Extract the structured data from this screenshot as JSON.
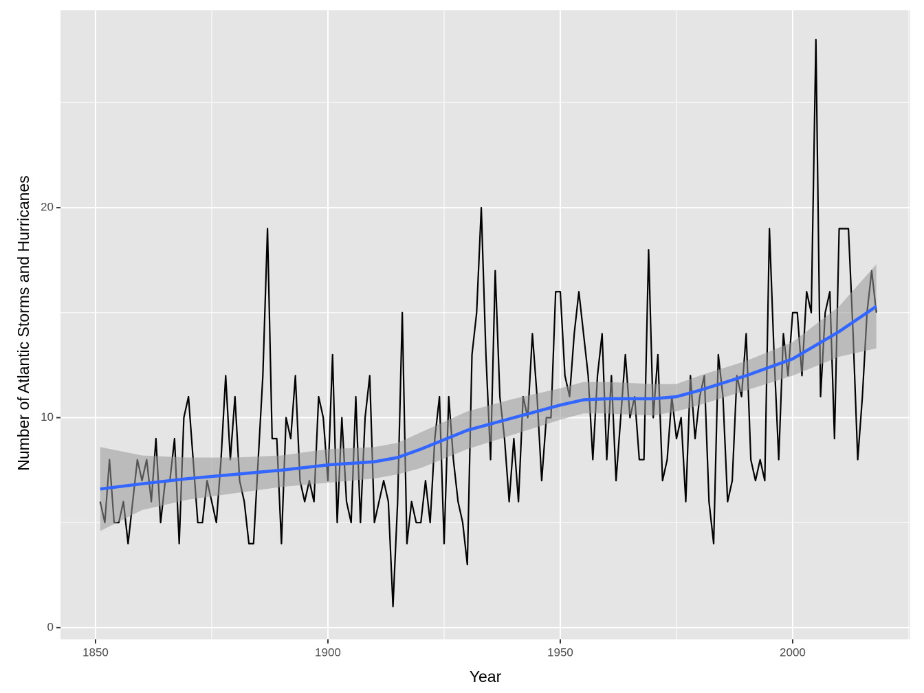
{
  "chart_data": {
    "type": "line",
    "x_label": "Year",
    "y_label": "Number of Atlantic Storms and Hurricanes",
    "xlim": [
      1842.46,
      2025.3
    ],
    "ylim": [
      -0.56,
      29.4
    ],
    "xticks": [
      1850,
      1900,
      1950,
      2000
    ],
    "yticks": [
      0,
      10,
      20
    ],
    "grid": true,
    "series": [
      {
        "color": "#000000",
        "x": [
          1851,
          1852,
          1853,
          1854,
          1855,
          1856,
          1857,
          1858,
          1859,
          1860,
          1861,
          1862,
          1863,
          1864,
          1865,
          1866,
          1867,
          1868,
          1869,
          1870,
          1871,
          1872,
          1873,
          1874,
          1875,
          1876,
          1877,
          1878,
          1879,
          1880,
          1881,
          1882,
          1883,
          1884,
          1885,
          1886,
          1887,
          1888,
          1889,
          1890,
          1891,
          1892,
          1893,
          1894,
          1895,
          1896,
          1897,
          1898,
          1899,
          1900,
          1901,
          1902,
          1903,
          1904,
          1905,
          1906,
          1907,
          1908,
          1909,
          1910,
          1911,
          1912,
          1913,
          1914,
          1915,
          1916,
          1917,
          1918,
          1919,
          1920,
          1921,
          1922,
          1923,
          1924,
          1925,
          1926,
          1927,
          1928,
          1929,
          1930,
          1931,
          1932,
          1933,
          1934,
          1935,
          1936,
          1937,
          1938,
          1939,
          1940,
          1941,
          1942,
          1943,
          1944,
          1945,
          1946,
          1947,
          1948,
          1949,
          1950,
          1951,
          1952,
          1953,
          1954,
          1955,
          1956,
          1957,
          1958,
          1959,
          1960,
          1961,
          1962,
          1963,
          1964,
          1965,
          1966,
          1967,
          1968,
          1969,
          1970,
          1971,
          1972,
          1973,
          1974,
          1975,
          1976,
          1977,
          1978,
          1979,
          1980,
          1981,
          1982,
          1983,
          1984,
          1985,
          1986,
          1987,
          1988,
          1989,
          1990,
          1991,
          1992,
          1993,
          1994,
          1995,
          1996,
          1997,
          1998,
          1999,
          2000,
          2001,
          2002,
          2003,
          2004,
          2005,
          2006,
          2007,
          2008,
          2009,
          2010,
          2011,
          2012,
          2013,
          2014,
          2015,
          2016,
          2017,
          2018
        ],
        "values": [
          6,
          5,
          8,
          5,
          5,
          6,
          4,
          6,
          8,
          7,
          8,
          6,
          9,
          5,
          7,
          7,
          9,
          4,
          10,
          11,
          8,
          5,
          5,
          7,
          6,
          5,
          8,
          12,
          8,
          11,
          7,
          6,
          4,
          4,
          8,
          12,
          19,
          9,
          9,
          4,
          10,
          9,
          12,
          7,
          6,
          7,
          6,
          11,
          10,
          7,
          13,
          5,
          10,
          6,
          5,
          11,
          5,
          10,
          12,
          5,
          6,
          7,
          6,
          1,
          6,
          15,
          4,
          6,
          5,
          5,
          7,
          5,
          9,
          11,
          4,
          11,
          8,
          6,
          5,
          3,
          13,
          15,
          20,
          13,
          8,
          17,
          11,
          9,
          6,
          9,
          6,
          11,
          10,
          14,
          11,
          7,
          10,
          10,
          16,
          16,
          12,
          11,
          14,
          16,
          14,
          12,
          8,
          12,
          14,
          8,
          12,
          7,
          10,
          13,
          10,
          11,
          8,
          8,
          18,
          10,
          13,
          7,
          8,
          11,
          9,
          10,
          6,
          12,
          9,
          11,
          12,
          6,
          4,
          13,
          11,
          6,
          7,
          12,
          11,
          14,
          8,
          7,
          8,
          7,
          19,
          13,
          8,
          14,
          12,
          15,
          15,
          12,
          16,
          15,
          28,
          11,
          15,
          16,
          9,
          19,
          19,
          19,
          14,
          8,
          11,
          15,
          17,
          15
        ]
      }
    ],
    "smooth": {
      "color": "#3366ff",
      "band_color": "#999999",
      "x": [
        1851,
        1860,
        1870,
        1880,
        1890,
        1900,
        1910,
        1915,
        1920,
        1930,
        1940,
        1950,
        1955,
        1960,
        1970,
        1975,
        1980,
        1990,
        2000,
        2010,
        2018
      ],
      "values": [
        6.6,
        6.85,
        7.1,
        7.3,
        7.5,
        7.75,
        7.9,
        8.1,
        8.5,
        9.4,
        10.0,
        10.6,
        10.85,
        10.9,
        10.9,
        11.0,
        11.3,
        12.0,
        12.8,
        14.1,
        15.3
      ],
      "lower": [
        4.6,
        5.6,
        6.1,
        6.4,
        6.7,
        6.9,
        7.1,
        7.3,
        7.6,
        8.5,
        9.2,
        9.9,
        10.2,
        10.2,
        10.1,
        10.3,
        10.6,
        11.3,
        12.0,
        12.9,
        13.3
      ],
      "upper": [
        8.6,
        8.2,
        8.1,
        8.1,
        8.2,
        8.5,
        8.6,
        8.8,
        9.3,
        10.3,
        10.9,
        11.4,
        11.7,
        11.7,
        11.6,
        11.6,
        12.0,
        12.7,
        13.6,
        15.3,
        17.3
      ]
    }
  }
}
